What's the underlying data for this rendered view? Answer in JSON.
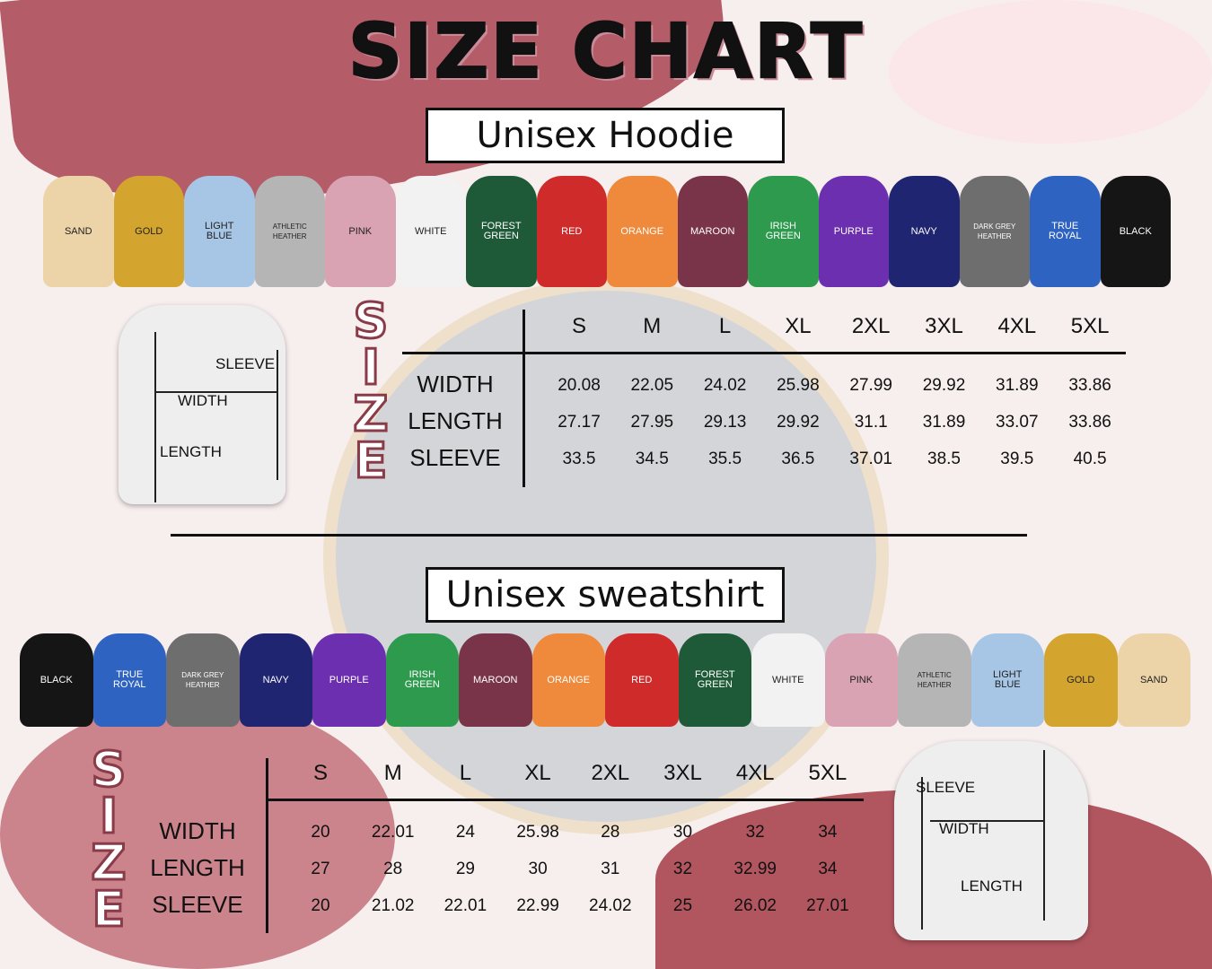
{
  "title": "SIZE CHART",
  "hoodie": {
    "heading": "Unisex Hoodie",
    "colors": [
      {
        "name": "SAND",
        "hex": "#ecd3a8"
      },
      {
        "name": "GOLD",
        "hex": "#d4a52e"
      },
      {
        "name": "LIGHT BLUE",
        "hex": "#a7c6e6"
      },
      {
        "name": "ATHLETIC HEATHER",
        "hex": "#b5b5b5"
      },
      {
        "name": "PINK",
        "hex": "#d9a3b3"
      },
      {
        "name": "WHITE",
        "hex": "#f2f2f2"
      },
      {
        "name": "FOREST GREEN",
        "hex": "#1f5a38"
      },
      {
        "name": "RED",
        "hex": "#cf2b2b"
      },
      {
        "name": "ORANGE",
        "hex": "#ef8a3c"
      },
      {
        "name": "MAROON",
        "hex": "#7a3449"
      },
      {
        "name": "IRISH GREEN",
        "hex": "#2e9a4e"
      },
      {
        "name": "PURPLE",
        "hex": "#6b2fb0"
      },
      {
        "name": "NAVY",
        "hex": "#1f2570"
      },
      {
        "name": "DARK GREY HEATHER",
        "hex": "#6e6e6e"
      },
      {
        "name": "TRUE ROYAL",
        "hex": "#2f63c2"
      },
      {
        "name": "BLACK",
        "hex": "#151515"
      }
    ],
    "diagram": {
      "sleeve": "SLEEVE",
      "width": "WIDTH",
      "length": "LENGTH"
    },
    "size_word": "SIZE",
    "sizes": [
      "S",
      "M",
      "L",
      "XL",
      "2XL",
      "3XL",
      "4XL",
      "5XL"
    ],
    "rows": [
      {
        "label": "WIDTH",
        "values": [
          "20.08",
          "22.05",
          "24.02",
          "25.98",
          "27.99",
          "29.92",
          "31.89",
          "33.86"
        ]
      },
      {
        "label": "LENGTH",
        "values": [
          "27.17",
          "27.95",
          "29.13",
          "29.92",
          "31.1",
          "31.89",
          "33.07",
          "33.86"
        ]
      },
      {
        "label": "SLEEVE",
        "values": [
          "33.5",
          "34.5",
          "35.5",
          "36.5",
          "37.01",
          "38.5",
          "39.5",
          "40.5"
        ]
      }
    ]
  },
  "sweatshirt": {
    "heading": "Unisex sweatshirt",
    "colors": [
      {
        "name": "BLACK",
        "hex": "#151515"
      },
      {
        "name": "TRUE ROYAL",
        "hex": "#2f63c2"
      },
      {
        "name": "DARK GREY HEATHER",
        "hex": "#6e6e6e"
      },
      {
        "name": "NAVY",
        "hex": "#1f2570"
      },
      {
        "name": "PURPLE",
        "hex": "#6b2fb0"
      },
      {
        "name": "IRISH GREEN",
        "hex": "#2e9a4e"
      },
      {
        "name": "MAROON",
        "hex": "#7a3449"
      },
      {
        "name": "ORANGE",
        "hex": "#ef8a3c"
      },
      {
        "name": "RED",
        "hex": "#cf2b2b"
      },
      {
        "name": "FOREST GREEN",
        "hex": "#1f5a38"
      },
      {
        "name": "WHITE",
        "hex": "#f2f2f2"
      },
      {
        "name": "PINK",
        "hex": "#d9a3b3"
      },
      {
        "name": "ATHLETIC HEATHER",
        "hex": "#b5b5b5"
      },
      {
        "name": "LIGHT BLUE",
        "hex": "#a7c6e6"
      },
      {
        "name": "GOLD",
        "hex": "#d4a52e"
      },
      {
        "name": "SAND",
        "hex": "#ecd3a8"
      }
    ],
    "diagram": {
      "sleeve": "SLEEVE",
      "width": "WIDTH",
      "length": "LENGTH"
    },
    "size_word": "SIZE",
    "sizes": [
      "S",
      "M",
      "L",
      "XL",
      "2XL",
      "3XL",
      "4XL",
      "5XL"
    ],
    "rows": [
      {
        "label": "WIDTH",
        "values": [
          "20",
          "22.01",
          "24",
          "25.98",
          "28",
          "30",
          "32",
          "34"
        ]
      },
      {
        "label": "LENGTH",
        "values": [
          "27",
          "28",
          "29",
          "30",
          "31",
          "32",
          "32.99",
          "34"
        ]
      },
      {
        "label": "SLEEVE",
        "values": [
          "20",
          "21.02",
          "22.01",
          "22.99",
          "24.02",
          "25",
          "26.02",
          "27.01"
        ]
      }
    ]
  }
}
